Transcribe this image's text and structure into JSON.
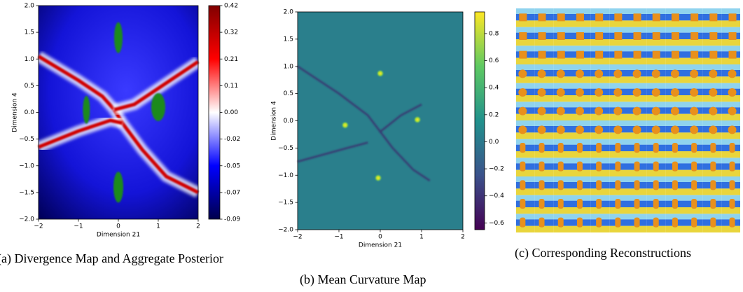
{
  "chart_data": [
    {
      "type": "heatmap",
      "colormap": "seismic",
      "xlabel": "Dimension 21",
      "ylabel": "Dimension 4",
      "xlim": [
        -2,
        2
      ],
      "ylim": [
        -2,
        2
      ],
      "xticks": [
        {
          "value": -2,
          "label": "−2"
        },
        {
          "value": -1,
          "label": "−1"
        },
        0,
        1,
        2
      ],
      "yticks": [
        {
          "value": 2,
          "label": "2.0"
        },
        {
          "value": 1.5,
          "label": "1.5"
        },
        {
          "value": 1,
          "label": "1.0"
        },
        {
          "value": 0.5,
          "label": "0.5"
        },
        {
          "value": 0,
          "label": "0.0"
        },
        {
          "value": -0.5,
          "label": "−0.5"
        },
        {
          "value": -1,
          "label": "−1.0"
        },
        {
          "value": -1.5,
          "label": "−1.5"
        },
        {
          "value": -2,
          "label": "−2.0"
        }
      ],
      "colorbar": {
        "norm": "two-slope",
        "center": 0,
        "clim": [
          -0.09,
          0.42
        ],
        "ticks": [
          0.42,
          {
            "value": 0.315,
            "label": "0.32"
          },
          0.21,
          {
            "value": 0.105,
            "label": "0.11"
          },
          {
            "value": 0,
            "label": "0.00"
          },
          {
            "value": -0.0225,
            "label": "-0.02"
          },
          {
            "value": -0.045,
            "label": "-0.05"
          },
          {
            "value": -0.0675,
            "label": "-0.07"
          },
          -0.09
        ]
      }
    },
    {
      "type": "heatmap",
      "colormap": "viridis",
      "xlabel": "Dimension 21",
      "ylabel": "Dimension 4",
      "xlim": [
        -2,
        2
      ],
      "ylim": [
        -2,
        2
      ],
      "xticks": [
        {
          "value": -2,
          "label": "−2"
        },
        {
          "value": -1,
          "label": "−1"
        },
        0,
        1,
        2
      ],
      "yticks": [
        {
          "value": 2,
          "label": "2.0"
        },
        {
          "value": 1.5,
          "label": "1.5"
        },
        {
          "value": 1,
          "label": "1.0"
        },
        {
          "value": 0.5,
          "label": "0.5"
        },
        {
          "value": 0,
          "label": "0.0"
        },
        {
          "value": -0.5,
          "label": "−0.5"
        },
        {
          "value": -1,
          "label": "−1.0"
        },
        {
          "value": -1.5,
          "label": "−1.5"
        },
        {
          "value": -2,
          "label": "−2.0"
        }
      ],
      "colorbar": {
        "norm": "linear",
        "clim": [
          -0.65,
          0.96
        ],
        "ticks": [
          0.8,
          0.6,
          0.4,
          0.2,
          {
            "value": 0,
            "label": "0.0"
          },
          {
            "value": -0.2,
            "label": "−0.2"
          },
          {
            "value": -0.4,
            "label": "−0.4"
          },
          {
            "value": -0.6,
            "label": "−0.6"
          }
        ]
      }
    }
  ],
  "captions": [
    "(a) Divergence Map and Aggregate Posterior",
    "(b) Mean Curvature Map",
    "(c) Corresponding Reconstructions"
  ]
}
